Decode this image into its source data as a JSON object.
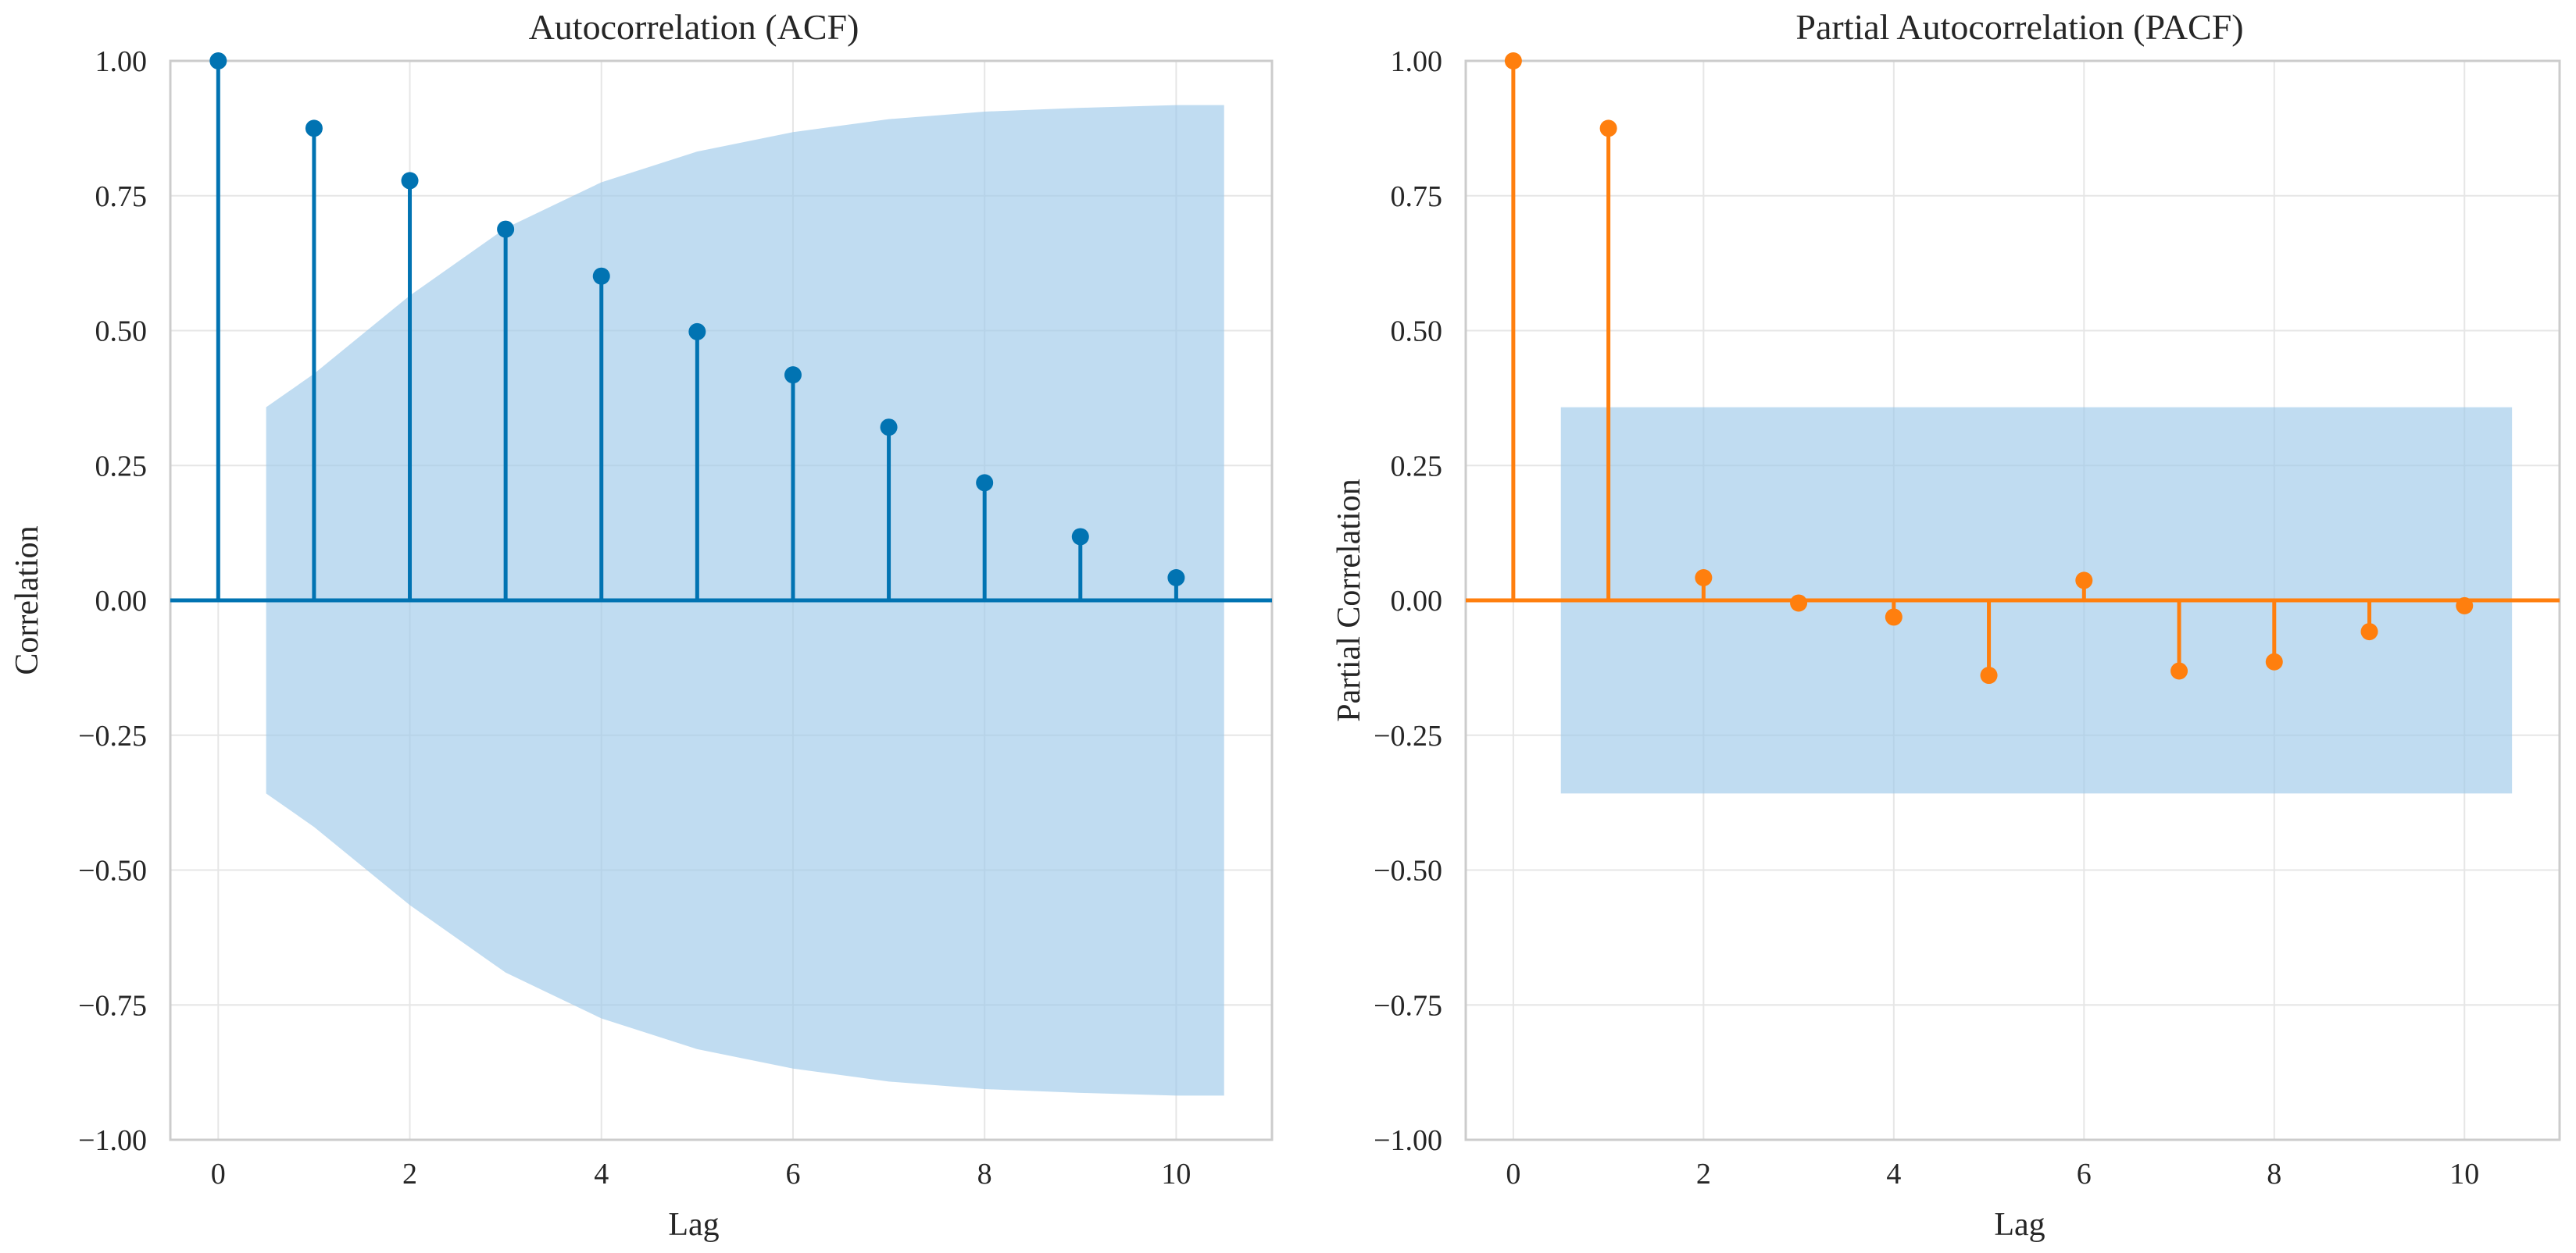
{
  "chart_data": [
    {
      "type": "stem",
      "title": "Autocorrelation (ACF)",
      "xlabel": "Lag",
      "ylabel": "Correlation",
      "xlim": [
        -0.5,
        11
      ],
      "ylim": [
        -1.0,
        1.0
      ],
      "xticks": [
        0,
        2,
        4,
        6,
        8,
        10
      ],
      "yticks": [
        -1.0,
        -0.75,
        -0.5,
        -0.25,
        0.0,
        0.25,
        0.5,
        0.75,
        1.0
      ],
      "ytick_labels": [
        "−1.00",
        "−0.75",
        "−0.50",
        "−0.25",
        "0.00",
        "0.25",
        "0.50",
        "0.75",
        "1.00"
      ],
      "grid": true,
      "color": "#0173b2",
      "band_color": "#9ecae9",
      "x": [
        0,
        1,
        2,
        3,
        4,
        5,
        6,
        7,
        8,
        9,
        10
      ],
      "values": [
        1.0,
        0.875,
        0.778,
        0.688,
        0.601,
        0.498,
        0.418,
        0.321,
        0.218,
        0.118,
        0.042
      ],
      "confidence_band": {
        "x": [
          0.5,
          1,
          2,
          3,
          4,
          5,
          6,
          7,
          8,
          9,
          10,
          10.5
        ],
        "upper": [
          0.358,
          0.42,
          0.565,
          0.69,
          0.775,
          0.832,
          0.868,
          0.892,
          0.906,
          0.913,
          0.918,
          0.918
        ],
        "lower": [
          -0.358,
          -0.42,
          -0.565,
          -0.69,
          -0.775,
          -0.832,
          -0.868,
          -0.892,
          -0.906,
          -0.913,
          -0.918,
          -0.918
        ]
      }
    },
    {
      "type": "stem",
      "title": "Partial Autocorrelation (PACF)",
      "xlabel": "Lag",
      "ylabel": "Partial Correlation",
      "xlim": [
        -0.5,
        11
      ],
      "ylim": [
        -1.0,
        1.0
      ],
      "xticks": [
        0,
        2,
        4,
        6,
        8,
        10
      ],
      "yticks": [
        -1.0,
        -0.75,
        -0.5,
        -0.25,
        0.0,
        0.25,
        0.5,
        0.75,
        1.0
      ],
      "ytick_labels": [
        "−1.00",
        "−0.75",
        "−0.50",
        "−0.25",
        "0.00",
        "0.25",
        "0.50",
        "0.75",
        "1.00"
      ],
      "grid": true,
      "color": "#ff7f0e",
      "band_color": "#9ecae9",
      "x": [
        0,
        1,
        2,
        3,
        4,
        5,
        6,
        7,
        8,
        9,
        10
      ],
      "values": [
        1.0,
        0.875,
        0.042,
        -0.005,
        -0.031,
        -0.139,
        0.037,
        -0.131,
        -0.114,
        -0.058,
        -0.01
      ],
      "confidence_band": {
        "x": [
          0.5,
          10.5
        ],
        "upper": [
          0.358,
          0.358
        ],
        "lower": [
          -0.358,
          -0.358
        ]
      }
    }
  ]
}
